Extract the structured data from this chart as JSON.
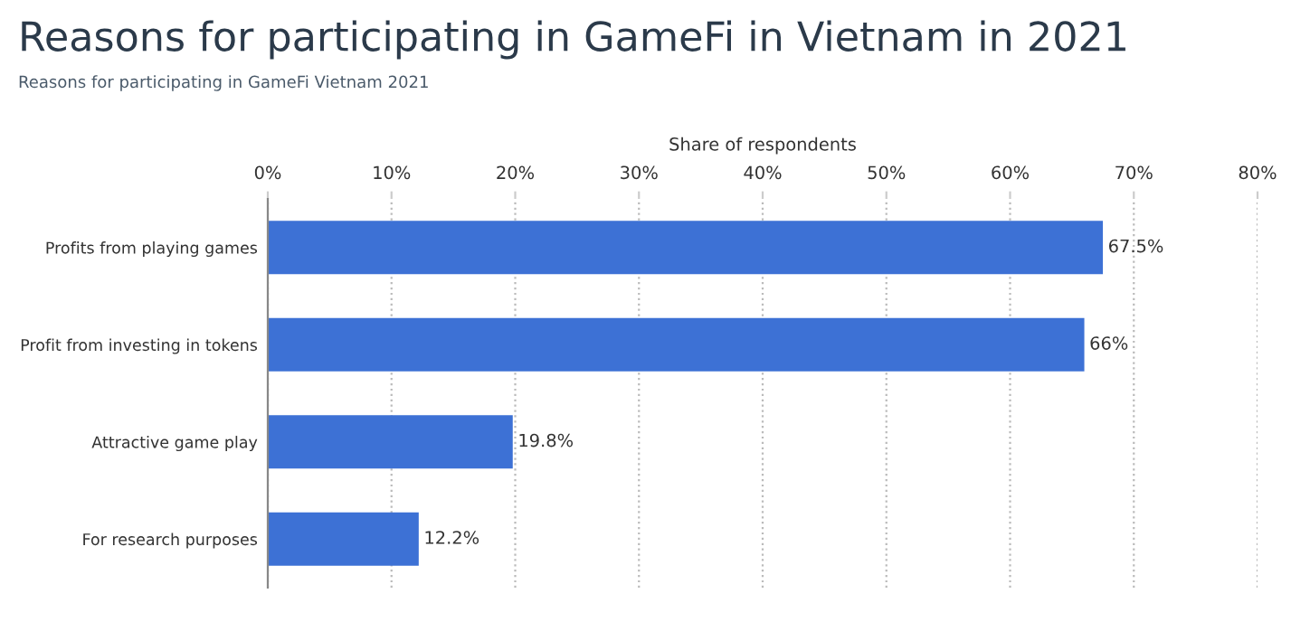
{
  "chart_data": {
    "type": "bar",
    "orientation": "horizontal",
    "title": "Reasons for participating in GameFi in Vietnam in 2021",
    "subtitle": "Reasons for participating in GameFi Vietnam 2021",
    "xlabel": "Share of respondents",
    "categories": [
      "Profits from playing games",
      "Profit from investing in tokens",
      "Attractive game play",
      "For research purposes"
    ],
    "values": [
      67.5,
      66,
      19.8,
      12.2
    ],
    "value_labels": [
      "67.5%",
      "66%",
      "19.8%",
      "12.2%"
    ],
    "color": "#3d71d5",
    "xlim": [
      0,
      80
    ],
    "xticks": [
      {
        "value": 0,
        "label": "0%"
      },
      {
        "value": 10,
        "label": "10%"
      },
      {
        "value": 20,
        "label": "20%"
      },
      {
        "value": 30,
        "label": "30%"
      },
      {
        "value": 40,
        "label": "40%"
      },
      {
        "value": 50,
        "label": "50%"
      },
      {
        "value": 60,
        "label": "60%"
      },
      {
        "value": 70,
        "label": "70%"
      },
      {
        "value": 80,
        "label": "80%"
      }
    ],
    "grid": "x"
  }
}
